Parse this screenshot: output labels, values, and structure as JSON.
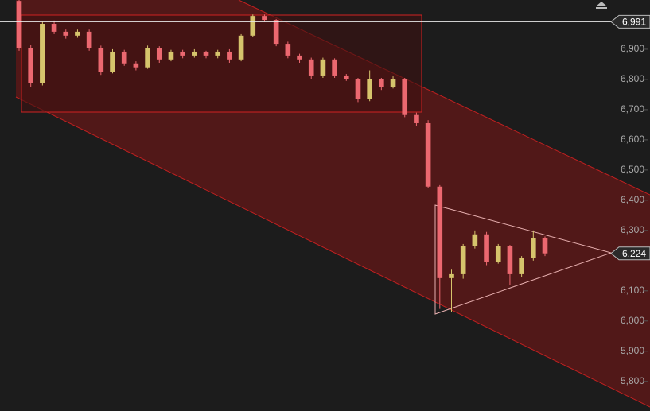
{
  "chart_data": {
    "type": "candlestick",
    "open": [
      7060,
      6905,
      6787,
      6984,
      6958,
      6945,
      6958,
      6905,
      6826,
      6892,
      6853,
      6840,
      6905,
      6866,
      6892,
      6879,
      6892,
      6879,
      6892,
      6866,
      6945,
      7010,
      6997,
      6918,
      6879,
      6866,
      6813,
      6866,
      6813,
      6800,
      6734,
      6800,
      6774,
      6800,
      6682,
      6655,
      6445,
      6142,
      6155,
      6247,
      6287,
      6195,
      6247,
      6155,
      6208,
      6274
    ],
    "high": [
      7065,
      6915,
      6990,
      6995,
      6965,
      6965,
      6965,
      6912,
      6900,
      6898,
      6860,
      6912,
      6910,
      6898,
      6898,
      6900,
      6895,
      6898,
      6900,
      6950,
      7015,
      7015,
      7000,
      6925,
      6885,
      6872,
      6872,
      6870,
      6818,
      6805,
      6830,
      6805,
      6810,
      6805,
      6690,
      6665,
      6450,
      6170,
      6255,
      6300,
      6295,
      6255,
      6252,
      6215,
      6300,
      6280
    ],
    "low": [
      6895,
      6775,
      6780,
      6950,
      6935,
      6938,
      6895,
      6815,
      6820,
      6845,
      6830,
      6835,
      6855,
      6860,
      6870,
      6872,
      6870,
      6870,
      6855,
      6860,
      6940,
      6990,
      6910,
      6870,
      6855,
      6800,
      6805,
      6805,
      6795,
      6725,
      6728,
      6765,
      6770,
      6675,
      6645,
      6440,
      6040,
      6030,
      6140,
      6240,
      6185,
      6190,
      6120,
      6145,
      6200,
      6215
    ],
    "close": [
      6905,
      6787,
      6984,
      6958,
      6945,
      6958,
      6905,
      6826,
      6892,
      6853,
      6840,
      6905,
      6866,
      6892,
      6879,
      6892,
      6879,
      6892,
      6866,
      6945,
      7010,
      6997,
      6918,
      6879,
      6866,
      6813,
      6866,
      6813,
      6800,
      6734,
      6800,
      6774,
      6800,
      6682,
      6655,
      6445,
      6142,
      6155,
      6247,
      6287,
      6195,
      6247,
      6155,
      6208,
      6274,
      6224
    ],
    "up_color": "#d6c46c",
    "down_color": "#ec6870",
    "ylim": [
      5702,
      7063
    ],
    "yticks": [
      {
        "value": 5800,
        "label": "5,800"
      },
      {
        "value": 5900,
        "label": "5,900"
      },
      {
        "value": 6000,
        "label": "6,000"
      },
      {
        "value": 6100,
        "label": "6,100"
      },
      {
        "value": 6300,
        "label": "6,300"
      },
      {
        "value": 6400,
        "label": "6,400"
      },
      {
        "value": 6500,
        "label": "6,500"
      },
      {
        "value": 6600,
        "label": "6,600"
      },
      {
        "value": 6700,
        "label": "6,700"
      },
      {
        "value": 6800,
        "label": "6,800"
      },
      {
        "value": 6900,
        "label": "6,900"
      }
    ],
    "price_labels": [
      {
        "value": 6991,
        "label": "6,991"
      },
      {
        "value": 6224,
        "label": "6,224"
      }
    ]
  }
}
